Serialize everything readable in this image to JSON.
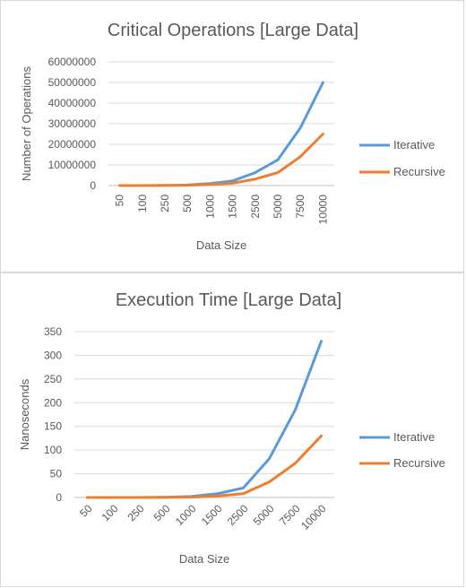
{
  "chart_data": [
    {
      "type": "line",
      "title": "Critical Operations [Large Data]",
      "xlabel": "Data Size",
      "ylabel": "Number of Operations",
      "categories": [
        "50",
        "100",
        "250",
        "500",
        "1000",
        "1500",
        "2500",
        "5000",
        "7500",
        "10000"
      ],
      "ylim": [
        0,
        60000000
      ],
      "yticks": [
        "0",
        "10000000",
        "20000000",
        "30000000",
        "40000000",
        "50000000",
        "60000000"
      ],
      "grid": true,
      "legend_position": "right",
      "series": [
        {
          "name": "Iterative",
          "color": "#5b9bd5",
          "values": [
            2500,
            10000,
            62500,
            250000,
            1000000,
            2250000,
            6250000,
            12500000,
            28000000,
            50000000
          ]
        },
        {
          "name": "Recursive",
          "color": "#ed7d31",
          "values": [
            1250,
            5000,
            31250,
            125000,
            500000,
            1125000,
            3125000,
            6250000,
            14000000,
            25000000
          ]
        }
      ]
    },
    {
      "type": "line",
      "title": "Execution Time [Large Data]",
      "xlabel": "Data Size",
      "ylabel": "Nanoseconds",
      "categories": [
        "50",
        "100",
        "250",
        "500",
        "1000",
        "1500",
        "2500",
        "5000",
        "7500",
        "10000"
      ],
      "ylim": [
        0,
        350
      ],
      "yticks": [
        "0",
        "50",
        "100",
        "150",
        "200",
        "250",
        "300",
        "350"
      ],
      "grid": true,
      "legend_position": "right",
      "series": [
        {
          "name": "Iterative",
          "color": "#5b9bd5",
          "values": [
            0,
            0,
            0,
            0.5,
            2,
            8,
            20,
            82,
            185,
            330
          ]
        },
        {
          "name": "Recursive",
          "color": "#ed7d31",
          "values": [
            0,
            0,
            0,
            0.2,
            0.8,
            3,
            8,
            33,
            72,
            130
          ]
        }
      ]
    }
  ]
}
